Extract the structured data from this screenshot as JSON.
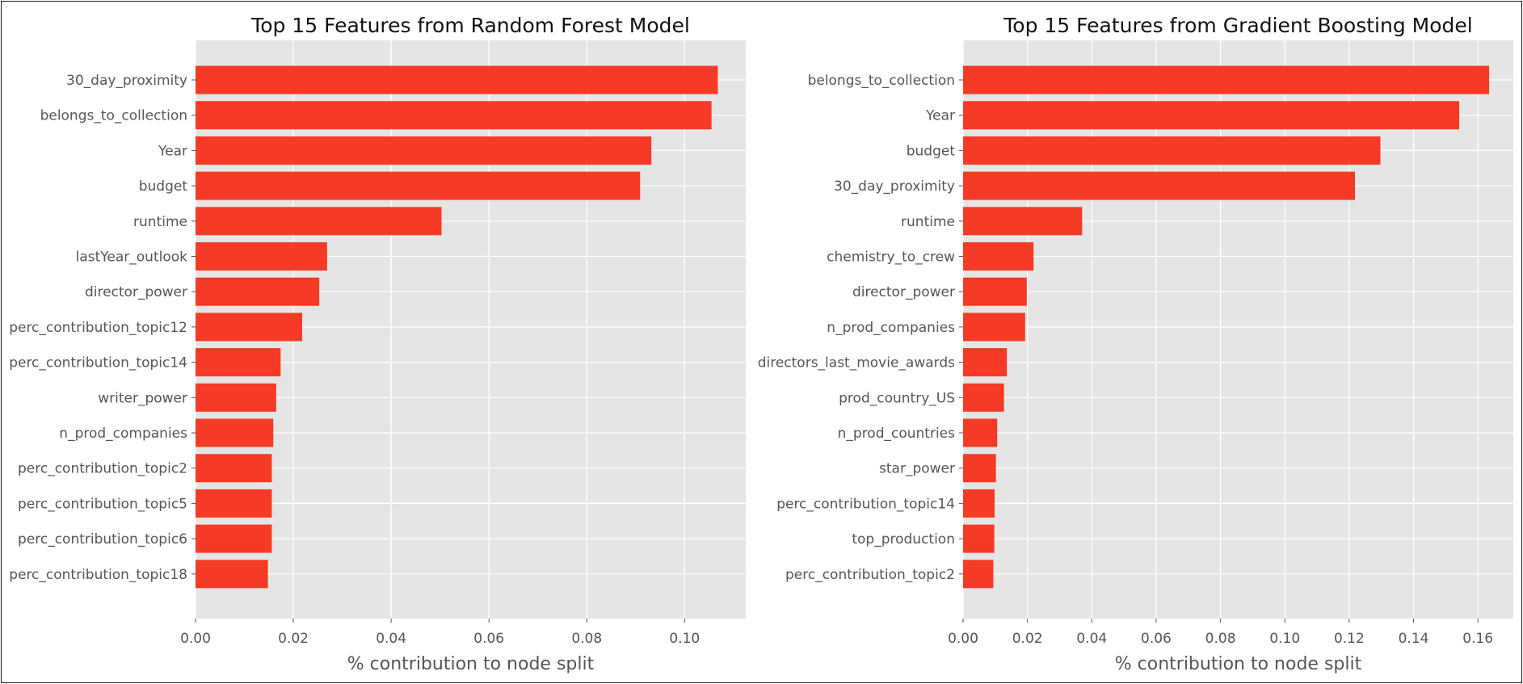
{
  "chart_data": [
    {
      "type": "bar",
      "orientation": "horizontal",
      "title": "Top 15 Features from Random Forest Model",
      "xlabel": "% contribution to node split",
      "ylabel": "",
      "xlim": [
        0,
        0.1125
      ],
      "xticks": [
        "0.00",
        "0.02",
        "0.04",
        "0.06",
        "0.08",
        "0.10"
      ],
      "grid": true,
      "bar_color": "#f53b25",
      "categories": [
        "30_day_proximity",
        "belongs_to_collection",
        "Year",
        "budget",
        "runtime",
        "lastYear_outlook",
        "director_power",
        "perc_contribution_topic12",
        "perc_contribution_topic14",
        "writer_power",
        "n_prod_companies",
        "perc_contribution_topic2",
        "perc_contribution_topic5",
        "perc_contribution_topic6",
        "perc_contribution_topic18"
      ],
      "values": [
        0.1068,
        0.1055,
        0.0932,
        0.0909,
        0.0503,
        0.0269,
        0.0253,
        0.0218,
        0.0174,
        0.0165,
        0.0159,
        0.0156,
        0.0156,
        0.0156,
        0.0148
      ]
    },
    {
      "type": "bar",
      "orientation": "horizontal",
      "title": "Top 15 Features from Gradient Boosting Model",
      "xlabel": "% contribution to node split",
      "ylabel": "",
      "xlim": [
        0,
        0.171
      ],
      "xticks": [
        "0.00",
        "0.02",
        "0.04",
        "0.06",
        "0.08",
        "0.10",
        "0.12",
        "0.14",
        "0.16"
      ],
      "grid": true,
      "bar_color": "#f53b25",
      "categories": [
        "belongs_to_collection",
        "Year",
        "budget",
        "30_day_proximity",
        "runtime",
        "chemistry_to_crew",
        "director_power",
        "n_prod_companies",
        "directors_last_movie_awards",
        "prod_country_US",
        "n_prod_countries",
        "star_power",
        "perc_contribution_topic14",
        "top_production",
        "perc_contribution_topic2"
      ],
      "values": [
        0.1635,
        0.1542,
        0.1297,
        0.1218,
        0.037,
        0.0219,
        0.0198,
        0.0193,
        0.0136,
        0.0127,
        0.0106,
        0.0102,
        0.0098,
        0.0097,
        0.0094
      ]
    }
  ]
}
